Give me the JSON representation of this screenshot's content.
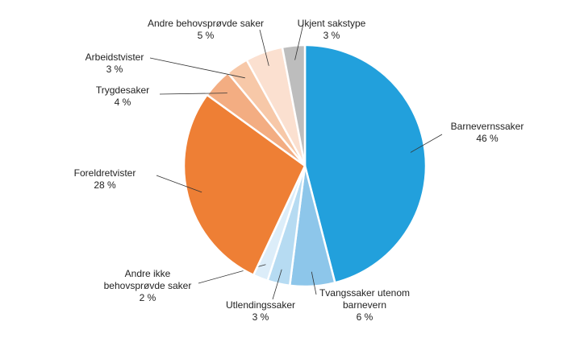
{
  "chart_data": {
    "type": "pie",
    "categories": [
      "Barnevernssaker",
      "Tvangssaker utenom barnevern",
      "Utlendingssaker",
      "Andre ikke behovsprøvde saker",
      "Foreldretvister",
      "Trygdesaker",
      "Arbeidstvister",
      "Andre behovsprøvde saker",
      "Ukjent sakstype"
    ],
    "values": [
      46,
      6,
      3,
      2,
      28,
      4,
      3,
      5,
      3
    ],
    "value_labels": [
      "46 %",
      "6 %",
      "3 %",
      "2 %",
      "28 %",
      "4 %",
      "3 %",
      "5 %",
      "3 %"
    ],
    "colors": [
      "#22a0dc",
      "#8dc6ea",
      "#b6dbf2",
      "#dcedf9",
      "#ee7f35",
      "#f3ad82",
      "#f7c8a8",
      "#fbe0d0",
      "#bdbdbd"
    ]
  }
}
